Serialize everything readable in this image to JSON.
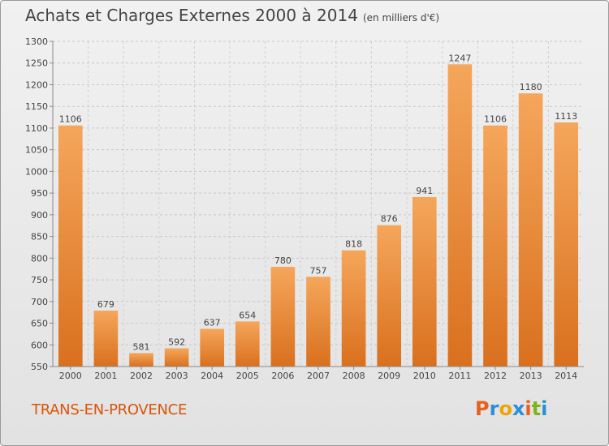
{
  "header": {
    "title": "Achats et Charges Externes 2000 à 2014",
    "subtitle": "(en milliers d'€)"
  },
  "footer": {
    "town": "TRANS-EN-PROVENCE",
    "logo_letters": [
      "P",
      "r",
      "o",
      "x",
      "i",
      "t",
      "i"
    ],
    "logo_colors": [
      "#e8601c",
      "#2a8fd8",
      "#f0a30a",
      "#2a8fd8",
      "#e8601c",
      "#7cb518",
      "#2a8fd8"
    ]
  },
  "chart_data": {
    "type": "bar",
    "categories": [
      "2000",
      "2001",
      "2002",
      "2003",
      "2004",
      "2005",
      "2006",
      "2007",
      "2008",
      "2009",
      "2010",
      "2011",
      "2012",
      "2013",
      "2014"
    ],
    "values": [
      1106,
      679,
      581,
      592,
      637,
      654,
      780,
      757,
      818,
      876,
      941,
      1247,
      1106,
      1180,
      1113
    ],
    "title": "Achats et Charges Externes 2000 à 2014",
    "ylim": [
      550,
      1300
    ],
    "yticks": [
      550,
      600,
      650,
      700,
      750,
      800,
      850,
      900,
      950,
      1000,
      1050,
      1100,
      1150,
      1200,
      1250,
      1300
    ],
    "grid": true,
    "bar_color_top": "#f5a65b",
    "bar_color_bottom": "#d9701e"
  }
}
